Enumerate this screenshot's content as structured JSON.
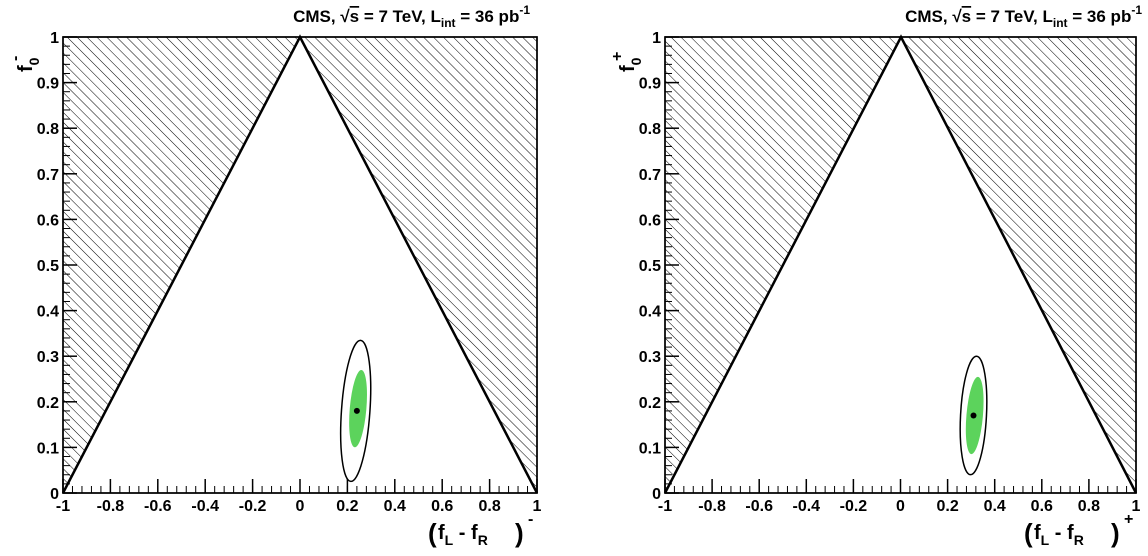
{
  "chart_data": [
    {
      "type": "scatter",
      "title": {
        "lead": "CMS, ",
        "sqrt_symbol": "√",
        "sqrt_arg": "s",
        "energy": " = 7 TeV, L",
        "lumi_sub": "int",
        "lumi_value": " = 36 pb",
        "lumi_sup": "-1"
      },
      "xlabel": {
        "open": "(",
        "f1": "f",
        "sub1": "L",
        "minus": " - ",
        "f2": "f",
        "sub2": "R",
        "close": ")",
        "sup": "-"
      },
      "ylabel": {
        "base": "f",
        "sub": "0",
        "sup": "-"
      },
      "xlim": [
        -1,
        1
      ],
      "ylim": [
        0,
        1
      ],
      "x_ticks": [
        "-1",
        "-0.8",
        "-0.6",
        "-0.4",
        "-0.2",
        "0",
        "0.2",
        "0.4",
        "0.6",
        "0.8",
        "1"
      ],
      "x_tick_values": [
        -1,
        -0.8,
        -0.6,
        -0.4,
        -0.2,
        0,
        0.2,
        0.4,
        0.6,
        0.8,
        1
      ],
      "y_ticks": [
        "0",
        "0.1",
        "0.2",
        "0.3",
        "0.4",
        "0.5",
        "0.6",
        "0.7",
        "0.8",
        "0.9",
        "1"
      ],
      "y_tick_values": [
        0,
        0.1,
        0.2,
        0.3,
        0.4,
        0.5,
        0.6,
        0.7,
        0.8,
        0.9,
        1
      ],
      "physical_boundary": {
        "apex": [
          0,
          1
        ],
        "left_base": [
          -1,
          0
        ],
        "right_base": [
          1,
          0
        ],
        "hatched_region": "outside"
      },
      "best_fit": {
        "x": 0.24,
        "y": 0.18
      },
      "contour_68": {
        "center": [
          0.245,
          0.185
        ],
        "half_width_x": 0.035,
        "half_height_y": 0.085,
        "tilt_deg": 5,
        "color": "#5cd35c"
      },
      "contour_95": {
        "center": [
          0.235,
          0.18
        ],
        "half_width_x": 0.06,
        "half_height_y": 0.155,
        "tilt_deg": 4
      }
    },
    {
      "type": "scatter",
      "title": {
        "lead": "CMS, ",
        "sqrt_symbol": "√",
        "sqrt_arg": "s",
        "energy": " = 7 TeV, L",
        "lumi_sub": "int",
        "lumi_value": " = 36 pb",
        "lumi_sup": "-1"
      },
      "xlabel": {
        "open": "(",
        "f1": "f",
        "sub1": "L",
        "minus": " - ",
        "f2": "f",
        "sub2": "R",
        "close": ")",
        "sup": "+"
      },
      "ylabel": {
        "base": "f",
        "sub": "0",
        "sup": "+"
      },
      "xlim": [
        -1,
        1
      ],
      "ylim": [
        0,
        1
      ],
      "x_ticks": [
        "-1",
        "-0.8",
        "-0.6",
        "-0.4",
        "-0.2",
        "0",
        "0.2",
        "0.4",
        "0.6",
        "0.8",
        "1"
      ],
      "x_tick_values": [
        -1,
        -0.8,
        -0.6,
        -0.4,
        -0.2,
        0,
        0.2,
        0.4,
        0.6,
        0.8,
        1
      ],
      "y_ticks": [
        "0",
        "0.1",
        "0.2",
        "0.3",
        "0.4",
        "0.5",
        "0.6",
        "0.7",
        "0.8",
        "0.9",
        "1"
      ],
      "y_tick_values": [
        0,
        0.1,
        0.2,
        0.3,
        0.4,
        0.5,
        0.6,
        0.7,
        0.8,
        0.9,
        1
      ],
      "physical_boundary": {
        "apex": [
          0,
          1
        ],
        "left_base": [
          -1,
          0
        ],
        "right_base": [
          1,
          0
        ],
        "hatched_region": "outside"
      },
      "best_fit": {
        "x": 0.31,
        "y": 0.17
      },
      "contour_68": {
        "center": [
          0.315,
          0.17
        ],
        "half_width_x": 0.035,
        "half_height_y": 0.085,
        "tilt_deg": 5,
        "color": "#5cd35c"
      },
      "contour_95": {
        "center": [
          0.31,
          0.17
        ],
        "half_width_x": 0.055,
        "half_height_y": 0.13,
        "tilt_deg": 3
      }
    }
  ]
}
